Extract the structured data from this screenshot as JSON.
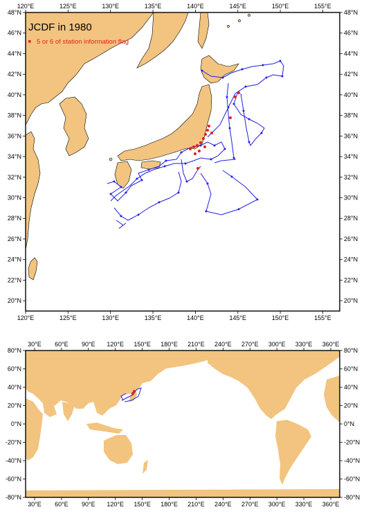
{
  "top_map": {
    "title": "JCDF in 1980",
    "legend_label": "5 or 6 of station information flag",
    "lon_labels": [
      "120°E",
      "125°E",
      "130°E",
      "135°E",
      "140°E",
      "145°E",
      "150°E",
      "155°E"
    ],
    "lat_labels": [
      "48°N",
      "46°N",
      "44°N",
      "42°N",
      "40°N",
      "38°N",
      "36°N",
      "34°N",
      "32°N",
      "30°N",
      "28°N",
      "26°N",
      "24°N",
      "22°N",
      "20°N"
    ],
    "extent": {
      "lon": [
        120,
        157
      ],
      "lat": [
        19,
        48
      ]
    }
  },
  "bottom_map": {
    "lon_labels": [
      "30°E",
      "60°E",
      "90°E",
      "120°E",
      "150°E",
      "180°E",
      "210°E",
      "240°E",
      "270°E",
      "300°E",
      "330°E",
      "360°E"
    ],
    "lat_labels": [
      "80°N",
      "60°N",
      "40°N",
      "20°N",
      "0°N",
      "-20°N",
      "-40°N",
      "-60°N",
      "-80°N"
    ],
    "extent": {
      "lon": [
        20,
        370
      ],
      "lat": [
        -80,
        80
      ]
    }
  },
  "colors": {
    "land": "#f2c47f",
    "station": "#1f1fe6",
    "flag": "#e61e1e"
  }
}
